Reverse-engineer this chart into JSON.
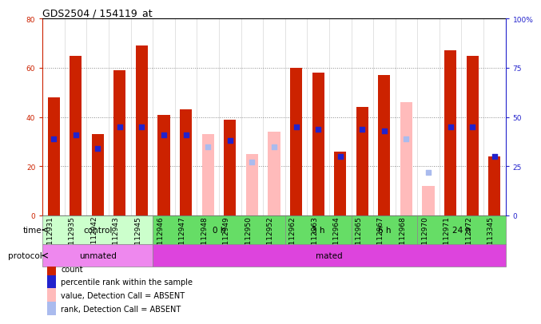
{
  "title": "GDS2504 / 154119_at",
  "samples": [
    "GSM112931",
    "GSM112935",
    "GSM112942",
    "GSM112943",
    "GSM112945",
    "GSM112946",
    "GSM112947",
    "GSM112948",
    "GSM112949",
    "GSM112950",
    "GSM112952",
    "GSM112962",
    "GSM112963",
    "GSM112964",
    "GSM112965",
    "GSM112967",
    "GSM112968",
    "GSM112970",
    "GSM112971",
    "GSM112972",
    "GSM113345"
  ],
  "count_values": [
    48,
    65,
    33,
    59,
    69,
    41,
    43,
    null,
    39,
    null,
    null,
    60,
    58,
    26,
    44,
    57,
    null,
    null,
    67,
    65,
    24
  ],
  "count_absent": [
    false,
    false,
    false,
    false,
    false,
    false,
    false,
    true,
    false,
    true,
    true,
    false,
    false,
    false,
    false,
    false,
    true,
    true,
    false,
    false,
    false
  ],
  "absent_value": [
    null,
    null,
    null,
    null,
    null,
    null,
    null,
    33,
    null,
    25,
    34,
    null,
    null,
    null,
    null,
    null,
    46,
    12,
    null,
    null,
    null
  ],
  "rank_values": [
    39,
    41,
    34,
    45,
    45,
    41,
    41,
    35,
    38,
    27,
    35,
    45,
    44,
    30,
    44,
    43,
    39,
    22,
    45,
    45,
    30
  ],
  "rank_absent": [
    false,
    false,
    false,
    false,
    false,
    false,
    false,
    true,
    false,
    true,
    true,
    false,
    false,
    false,
    false,
    false,
    true,
    true,
    false,
    false,
    false
  ],
  "ylim_left": [
    0,
    80
  ],
  "ylim_right": [
    0,
    100
  ],
  "left_ticks": [
    0,
    20,
    40,
    60,
    80
  ],
  "right_ticks": [
    0,
    25,
    50,
    75,
    100
  ],
  "left_tick_labels": [
    "0",
    "20",
    "40",
    "60",
    "80"
  ],
  "right_tick_labels": [
    "0",
    "25",
    "50",
    "75",
    "100%"
  ],
  "bar_color_present": "#cc2200",
  "bar_color_absent": "#ffbbbb",
  "rank_color_present": "#2222cc",
  "rank_color_absent": "#aabbee",
  "bar_width": 0.55,
  "rank_marker_size": 20,
  "time_groups": [
    {
      "label": "control",
      "start": 0,
      "end": 5,
      "color": "#ccffcc"
    },
    {
      "label": "0 h",
      "start": 5,
      "end": 11,
      "color": "#66dd66"
    },
    {
      "label": "3 h",
      "start": 11,
      "end": 14,
      "color": "#66dd66"
    },
    {
      "label": "6 h",
      "start": 14,
      "end": 17,
      "color": "#66dd66"
    },
    {
      "label": "24 h",
      "start": 17,
      "end": 21,
      "color": "#66dd66"
    }
  ],
  "protocol_groups": [
    {
      "label": "unmated",
      "start": 0,
      "end": 5,
      "color": "#ee88ee"
    },
    {
      "label": "mated",
      "start": 5,
      "end": 21,
      "color": "#dd44dd"
    }
  ],
  "grid_color": "#888888",
  "bg_color": "#ffffff",
  "ax_bg_color": "#ffffff",
  "legend_items": [
    {
      "label": "count",
      "color": "#cc2200"
    },
    {
      "label": "percentile rank within the sample",
      "color": "#2222cc"
    },
    {
      "label": "value, Detection Call = ABSENT",
      "color": "#ffbbbb"
    },
    {
      "label": "rank, Detection Call = ABSENT",
      "color": "#aabbee"
    }
  ],
  "tick_fontsize": 6.5,
  "title_fontsize": 9,
  "row_label_fontsize": 7.5,
  "legend_fontsize": 7
}
